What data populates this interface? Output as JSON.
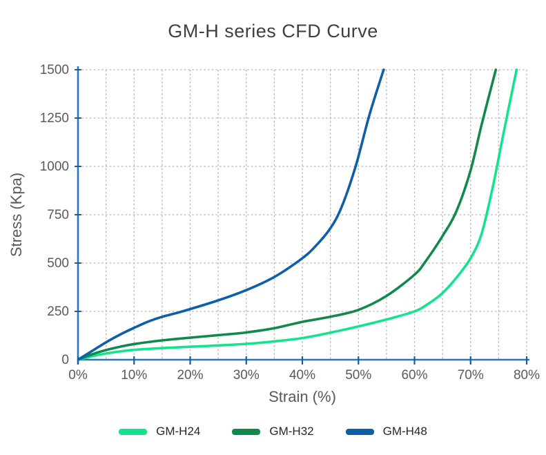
{
  "page": {
    "background": "#ffffff"
  },
  "chart_data": {
    "type": "line",
    "title": "GM-H series CFD Curve",
    "xlabel": "Strain (%)",
    "ylabel": "Stress (Kpa)",
    "xlim": [
      0,
      80
    ],
    "ylim": [
      0,
      1500
    ],
    "x_tick_values": [
      0,
      10,
      20,
      30,
      40,
      50,
      60,
      70,
      80
    ],
    "x_tick_labels": [
      "0%",
      "10%",
      "20%",
      "30%",
      "40%",
      "50%",
      "60%",
      "70%",
      "80%"
    ],
    "y_tick_values": [
      0,
      250,
      500,
      750,
      1000,
      1250,
      1500
    ],
    "y_tick_labels": [
      "0",
      "250",
      "500",
      "750",
      "1000",
      "1250",
      "1500"
    ],
    "grid": {
      "x_step": 5,
      "y_step": 250,
      "style": "dashed",
      "color": "#b3b3b3"
    },
    "legend_position": "bottom",
    "series": [
      {
        "name": "GM-H24",
        "color": "#13E48B",
        "points": [
          [
            0,
            0
          ],
          [
            2.5,
            18
          ],
          [
            5,
            32
          ],
          [
            7.5,
            43
          ],
          [
            10,
            51
          ],
          [
            15,
            60
          ],
          [
            20,
            67
          ],
          [
            25,
            74
          ],
          [
            30,
            82
          ],
          [
            35,
            95
          ],
          [
            40,
            112
          ],
          [
            45,
            140
          ],
          [
            50,
            172
          ],
          [
            55,
            208
          ],
          [
            60,
            250
          ],
          [
            62.5,
            290
          ],
          [
            65,
            345
          ],
          [
            67.5,
            425
          ],
          [
            70,
            525
          ],
          [
            72,
            655
          ],
          [
            74,
            900
          ],
          [
            76,
            1190
          ],
          [
            78.2,
            1500
          ]
        ]
      },
      {
        "name": "GM-H32",
        "color": "#10894C",
        "points": [
          [
            0,
            0
          ],
          [
            2.5,
            28
          ],
          [
            5,
            50
          ],
          [
            7.5,
            67
          ],
          [
            10,
            81
          ],
          [
            15,
            100
          ],
          [
            20,
            114
          ],
          [
            25,
            127
          ],
          [
            30,
            141
          ],
          [
            35,
            163
          ],
          [
            40,
            196
          ],
          [
            45,
            222
          ],
          [
            50,
            258
          ],
          [
            55,
            330
          ],
          [
            60,
            440
          ],
          [
            62,
            510
          ],
          [
            65,
            640
          ],
          [
            67.5,
            770
          ],
          [
            70,
            980
          ],
          [
            72,
            1220
          ],
          [
            74.5,
            1500
          ]
        ]
      },
      {
        "name": "GM-H48",
        "color": "#0F5FA8",
        "points": [
          [
            0,
            0
          ],
          [
            2.5,
            45
          ],
          [
            5,
            90
          ],
          [
            7.5,
            130
          ],
          [
            10,
            165
          ],
          [
            12.5,
            197
          ],
          [
            15,
            222
          ],
          [
            17.5,
            241
          ],
          [
            20,
            262
          ],
          [
            25,
            307
          ],
          [
            30,
            360
          ],
          [
            35,
            428
          ],
          [
            40,
            525
          ],
          [
            42.5,
            592
          ],
          [
            45,
            680
          ],
          [
            47,
            790
          ],
          [
            49.5,
            1000
          ],
          [
            52,
            1270
          ],
          [
            54.5,
            1500
          ]
        ]
      }
    ],
    "axis_color": "#2F74B5",
    "tick_color": "#1A5C9E",
    "text_color": "#595959",
    "title_color": "#3F3F3F",
    "legend_text_color": "#262626"
  }
}
